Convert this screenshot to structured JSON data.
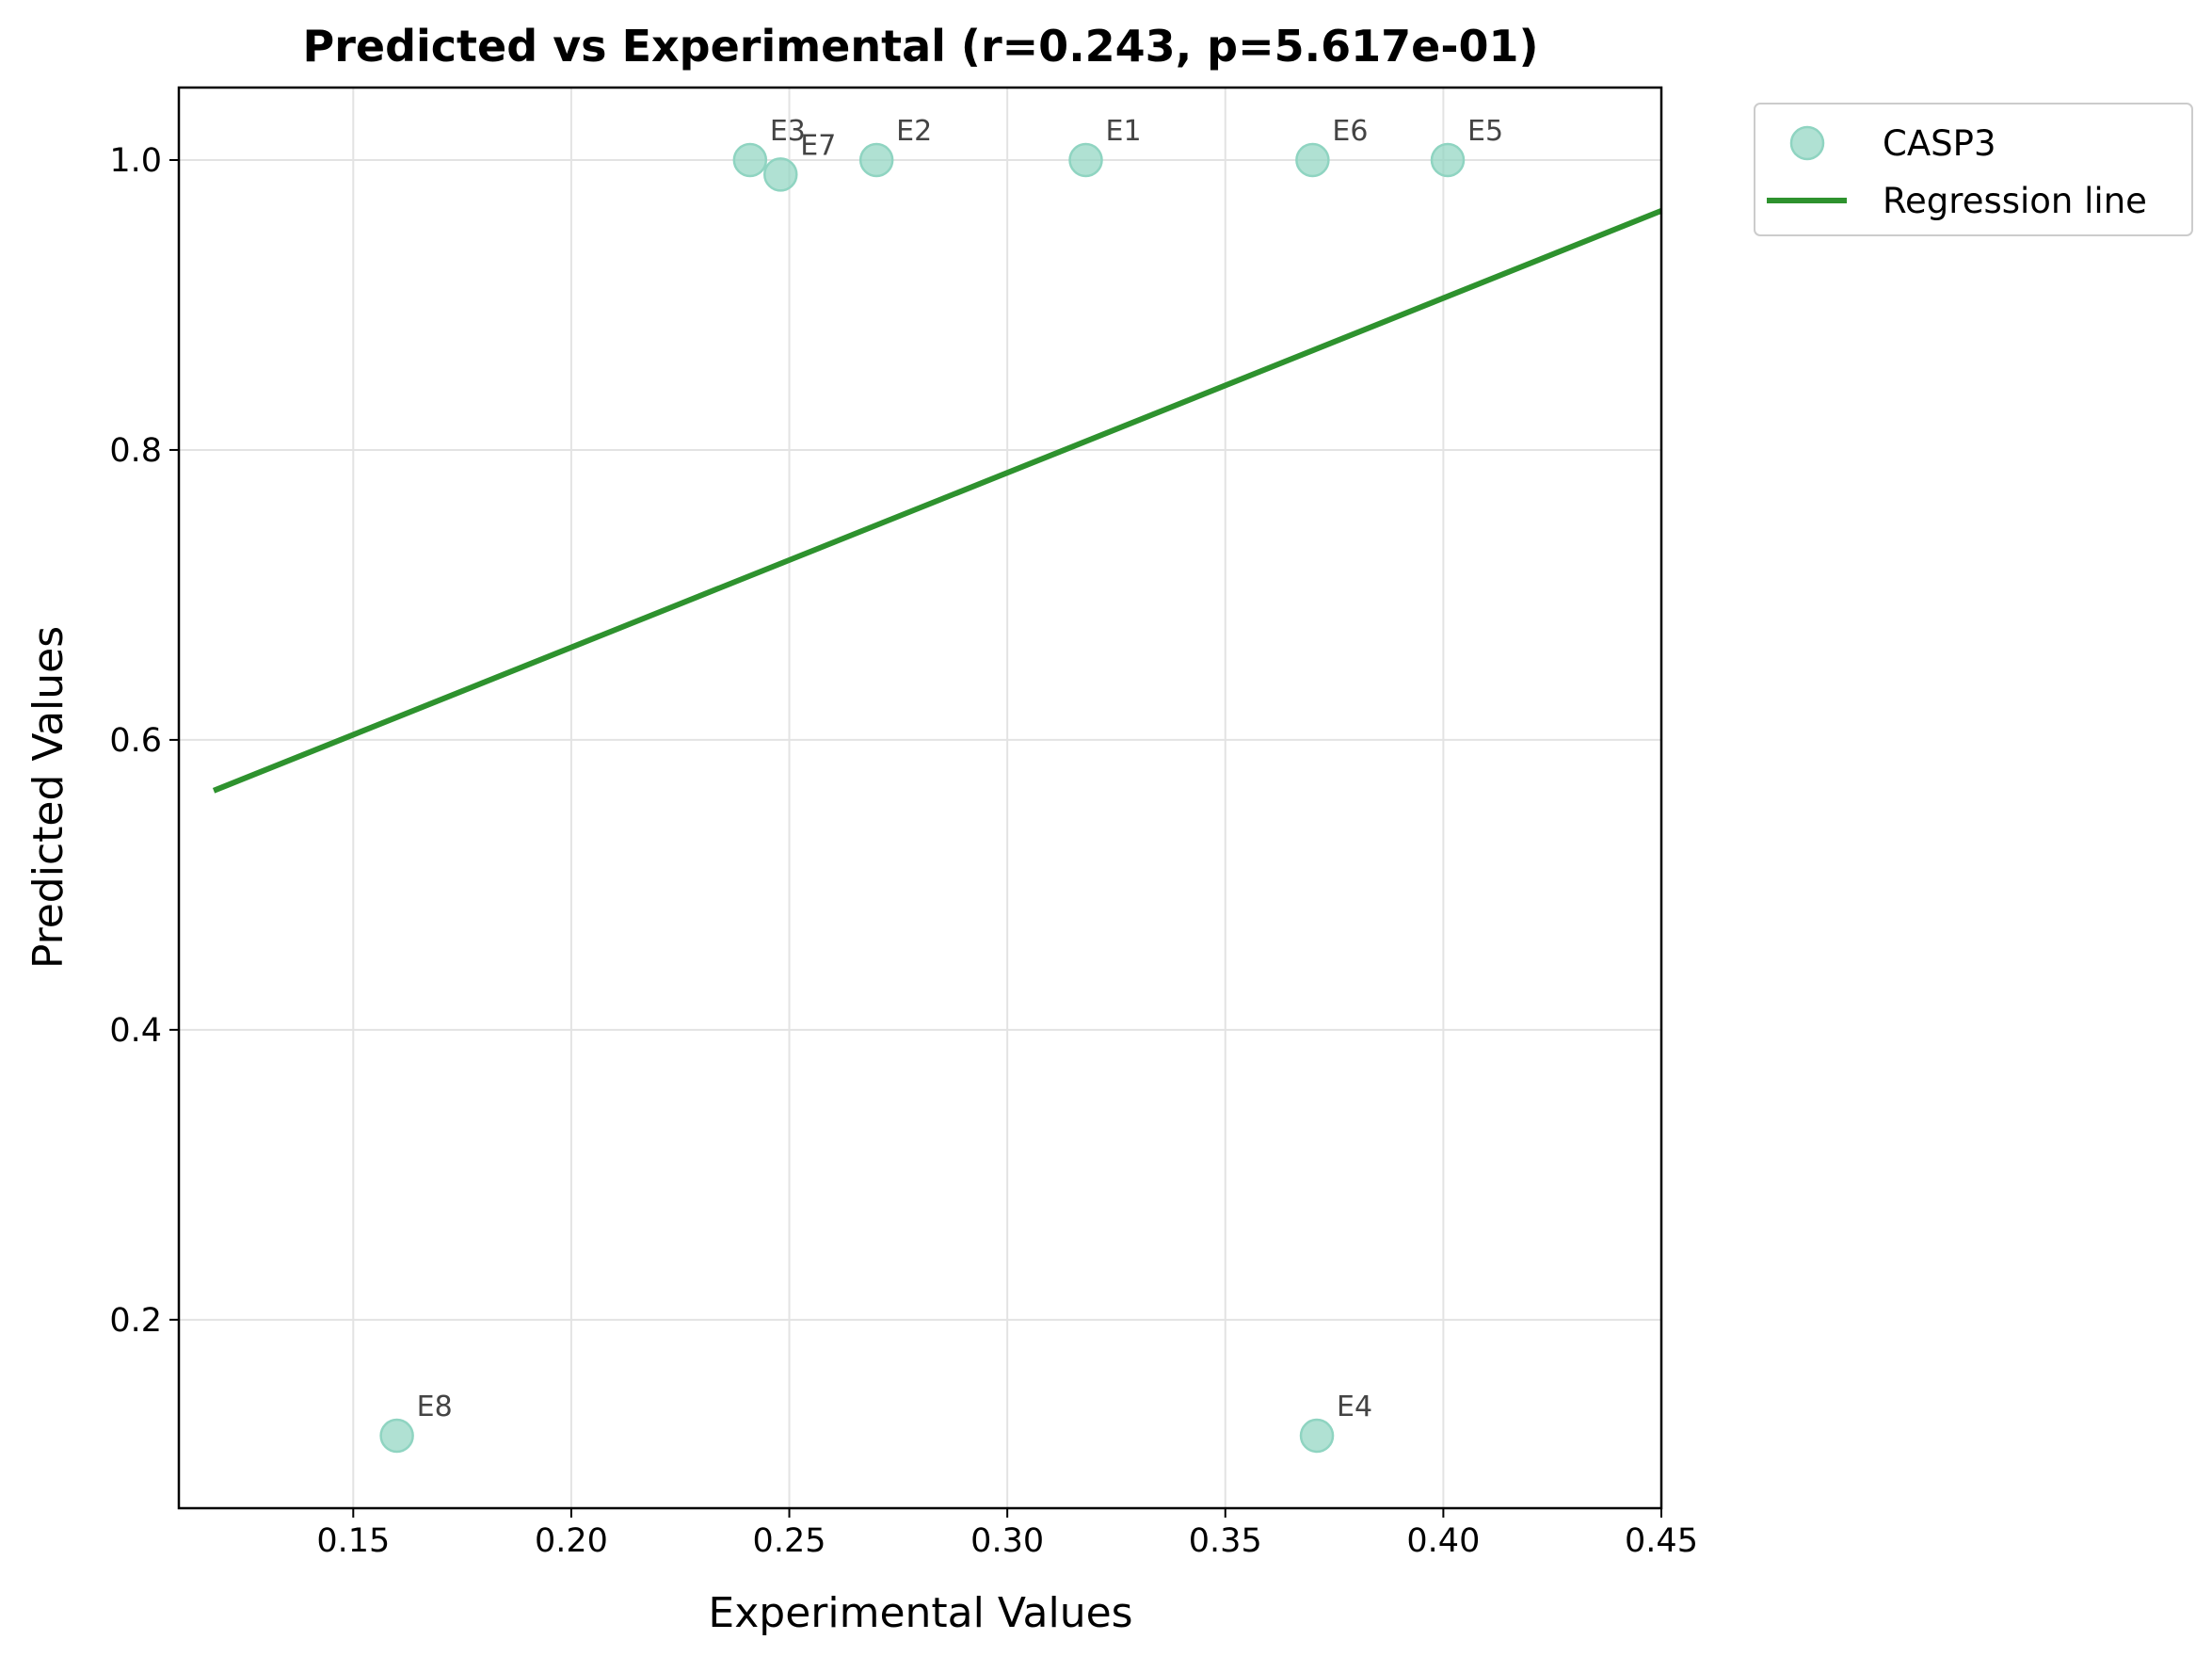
{
  "chart_data": {
    "type": "scatter",
    "title": "Predicted vs Experimental (r=0.243, p=5.617e-01)",
    "xlabel": "Experimental Values",
    "ylabel": "Predicted Values",
    "xlim": [
      0.11,
      0.45
    ],
    "ylim": [
      0.07,
      1.05
    ],
    "xticks": [
      0.15,
      0.2,
      0.25,
      0.3,
      0.35,
      0.4,
      0.45
    ],
    "xtick_labels": [
      "0.15",
      "0.20",
      "0.25",
      "0.30",
      "0.35",
      "0.40",
      "0.45"
    ],
    "yticks": [
      0.2,
      0.4,
      0.6,
      0.8,
      1.0
    ],
    "ytick_labels": [
      "0.2",
      "0.4",
      "0.6",
      "0.8",
      "1.0"
    ],
    "grid": true,
    "legend_position": "outside-top-right",
    "series": [
      {
        "name": "CASP3",
        "kind": "scatter",
        "color": "#8fd4c1",
        "points": [
          {
            "label": "E1",
            "x": 0.318,
            "y": 1.0
          },
          {
            "label": "E2",
            "x": 0.27,
            "y": 1.0
          },
          {
            "label": "E3",
            "x": 0.241,
            "y": 1.0
          },
          {
            "label": "E4",
            "x": 0.371,
            "y": 0.12
          },
          {
            "label": "E5",
            "x": 0.401,
            "y": 1.0
          },
          {
            "label": "E6",
            "x": 0.37,
            "y": 1.0
          },
          {
            "label": "E7",
            "x": 0.248,
            "y": 0.99
          },
          {
            "label": "E8",
            "x": 0.16,
            "y": 0.12
          }
        ]
      },
      {
        "name": "Regression line",
        "kind": "line",
        "color": "#2e922e",
        "x": [
          0.118,
          0.45
        ],
        "y": [
          0.565,
          0.965
        ]
      }
    ]
  }
}
